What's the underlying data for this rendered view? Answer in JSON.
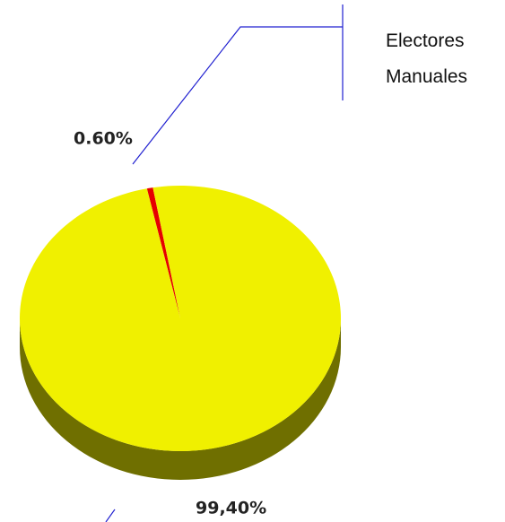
{
  "chart_data": {
    "type": "pie",
    "categories": [
      "Electores Manuales",
      null
    ],
    "values": [
      0.6,
      99.4
    ],
    "value_labels": [
      "0.60%",
      "99,40%"
    ],
    "colors": [
      "#e60000",
      "#f0f000"
    ],
    "legend": "upper right"
  }
}
